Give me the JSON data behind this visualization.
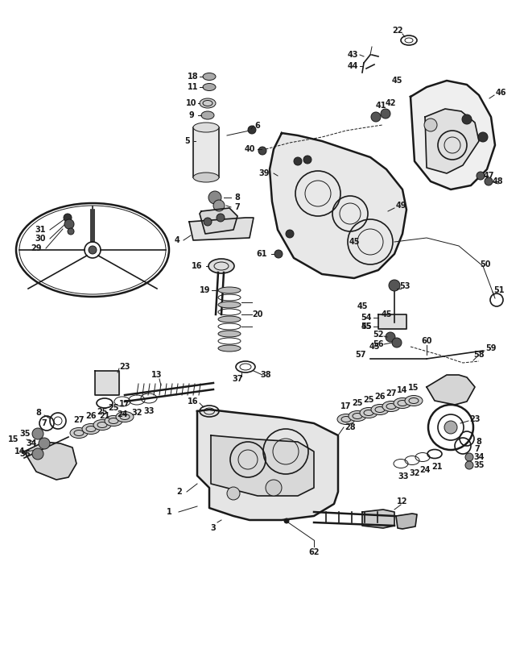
{
  "background_color": "#ffffff",
  "line_color": "#1a1a1a",
  "figsize": [
    6.51,
    8.0
  ],
  "dpi": 100
}
